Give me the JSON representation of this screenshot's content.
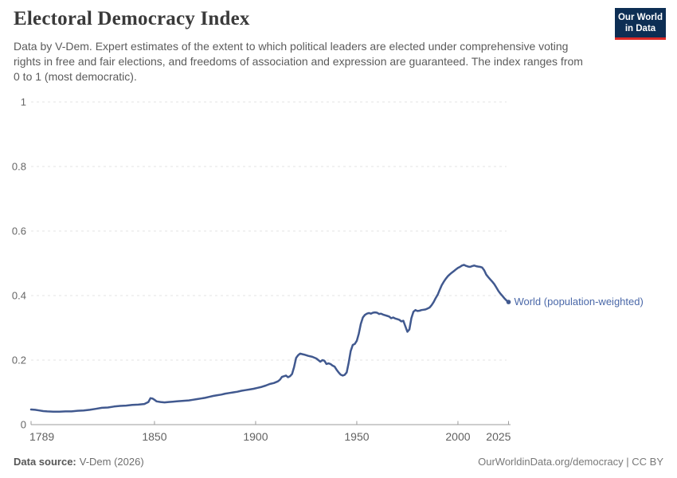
{
  "page": {
    "background": "#ffffff"
  },
  "header": {
    "title": "Electoral Democracy Index",
    "subtitle": "Data by V-Dem. Expert estimates of the extent to which political leaders are elected under comprehensive voting rights in free and fair elections, and freedoms of association and expression are guaranteed. The index ranges from 0 to 1 (most democratic)."
  },
  "logo": {
    "line1": "Our World",
    "line2": "in Data",
    "bg_color": "#0d2e54",
    "accent_color": "#dc2a27",
    "text_color": "#ffffff"
  },
  "chart_data": {
    "type": "line",
    "title": "Electoral Democracy Index",
    "xlabel": "",
    "ylabel": "",
    "x_domain": [
      1789,
      2026
    ],
    "y_domain": [
      0,
      1
    ],
    "x_ticks": [
      1789,
      1850,
      1900,
      1950,
      2000,
      2025
    ],
    "y_ticks": [
      0,
      0.2,
      0.4,
      0.6,
      0.8,
      1
    ],
    "grid": "horizontal-dashed",
    "grid_color": "#e3e3e3",
    "axis_color": "#9b9b9b",
    "legend_position": "label-at-line-end",
    "series": [
      {
        "name": "World (population-weighted)",
        "color": "#41598f",
        "label_color": "#4a68a8",
        "points": [
          [
            1789,
            0.047
          ],
          [
            1791,
            0.046
          ],
          [
            1793,
            0.044
          ],
          [
            1795,
            0.042
          ],
          [
            1797,
            0.041
          ],
          [
            1800,
            0.04
          ],
          [
            1803,
            0.04
          ],
          [
            1806,
            0.041
          ],
          [
            1809,
            0.041
          ],
          [
            1812,
            0.043
          ],
          [
            1815,
            0.044
          ],
          [
            1818,
            0.046
          ],
          [
            1821,
            0.049
          ],
          [
            1824,
            0.052
          ],
          [
            1827,
            0.053
          ],
          [
            1830,
            0.056
          ],
          [
            1833,
            0.058
          ],
          [
            1836,
            0.059
          ],
          [
            1839,
            0.061
          ],
          [
            1842,
            0.062
          ],
          [
            1845,
            0.064
          ],
          [
            1847,
            0.07
          ],
          [
            1848,
            0.082
          ],
          [
            1849,
            0.081
          ],
          [
            1850,
            0.077
          ],
          [
            1851,
            0.072
          ],
          [
            1853,
            0.07
          ],
          [
            1855,
            0.069
          ],
          [
            1857,
            0.07
          ],
          [
            1859,
            0.071
          ],
          [
            1861,
            0.072
          ],
          [
            1863,
            0.073
          ],
          [
            1865,
            0.074
          ],
          [
            1867,
            0.075
          ],
          [
            1869,
            0.077
          ],
          [
            1871,
            0.079
          ],
          [
            1873,
            0.081
          ],
          [
            1875,
            0.083
          ],
          [
            1877,
            0.086
          ],
          [
            1879,
            0.089
          ],
          [
            1881,
            0.091
          ],
          [
            1883,
            0.093
          ],
          [
            1885,
            0.096
          ],
          [
            1887,
            0.098
          ],
          [
            1889,
            0.1
          ],
          [
            1891,
            0.102
          ],
          [
            1893,
            0.105
          ],
          [
            1895,
            0.107
          ],
          [
            1897,
            0.109
          ],
          [
            1899,
            0.111
          ],
          [
            1901,
            0.114
          ],
          [
            1903,
            0.117
          ],
          [
            1905,
            0.121
          ],
          [
            1907,
            0.126
          ],
          [
            1909,
            0.129
          ],
          [
            1911,
            0.134
          ],
          [
            1912,
            0.139
          ],
          [
            1913,
            0.148
          ],
          [
            1915,
            0.152
          ],
          [
            1916,
            0.147
          ],
          [
            1917,
            0.15
          ],
          [
            1918,
            0.157
          ],
          [
            1919,
            0.178
          ],
          [
            1920,
            0.207
          ],
          [
            1921,
            0.215
          ],
          [
            1922,
            0.22
          ],
          [
            1924,
            0.217
          ],
          [
            1926,
            0.213
          ],
          [
            1928,
            0.21
          ],
          [
            1930,
            0.205
          ],
          [
            1931,
            0.2
          ],
          [
            1932,
            0.195
          ],
          [
            1933,
            0.2
          ],
          [
            1934,
            0.198
          ],
          [
            1935,
            0.188
          ],
          [
            1936,
            0.19
          ],
          [
            1937,
            0.188
          ],
          [
            1938,
            0.183
          ],
          [
            1939,
            0.18
          ],
          [
            1940,
            0.17
          ],
          [
            1941,
            0.162
          ],
          [
            1942,
            0.155
          ],
          [
            1943,
            0.152
          ],
          [
            1944,
            0.154
          ],
          [
            1945,
            0.162
          ],
          [
            1946,
            0.192
          ],
          [
            1947,
            0.228
          ],
          [
            1948,
            0.247
          ],
          [
            1949,
            0.25
          ],
          [
            1950,
            0.26
          ],
          [
            1951,
            0.282
          ],
          [
            1952,
            0.312
          ],
          [
            1953,
            0.332
          ],
          [
            1954,
            0.34
          ],
          [
            1955,
            0.344
          ],
          [
            1956,
            0.346
          ],
          [
            1957,
            0.344
          ],
          [
            1958,
            0.347
          ],
          [
            1959,
            0.348
          ],
          [
            1960,
            0.347
          ],
          [
            1961,
            0.343
          ],
          [
            1962,
            0.344
          ],
          [
            1963,
            0.341
          ],
          [
            1964,
            0.339
          ],
          [
            1965,
            0.337
          ],
          [
            1966,
            0.335
          ],
          [
            1967,
            0.33
          ],
          [
            1968,
            0.332
          ],
          [
            1969,
            0.329
          ],
          [
            1970,
            0.327
          ],
          [
            1971,
            0.325
          ],
          [
            1972,
            0.32
          ],
          [
            1973,
            0.322
          ],
          [
            1974,
            0.305
          ],
          [
            1975,
            0.288
          ],
          [
            1976,
            0.295
          ],
          [
            1977,
            0.33
          ],
          [
            1978,
            0.35
          ],
          [
            1979,
            0.355
          ],
          [
            1980,
            0.352
          ],
          [
            1981,
            0.353
          ],
          [
            1982,
            0.355
          ],
          [
            1983,
            0.356
          ],
          [
            1984,
            0.357
          ],
          [
            1985,
            0.36
          ],
          [
            1986,
            0.363
          ],
          [
            1987,
            0.37
          ],
          [
            1988,
            0.38
          ],
          [
            1989,
            0.392
          ],
          [
            1990,
            0.403
          ],
          [
            1991,
            0.418
          ],
          [
            1992,
            0.432
          ],
          [
            1993,
            0.443
          ],
          [
            1994,
            0.452
          ],
          [
            1995,
            0.46
          ],
          [
            1996,
            0.466
          ],
          [
            1997,
            0.471
          ],
          [
            1998,
            0.476
          ],
          [
            1999,
            0.481
          ],
          [
            2000,
            0.486
          ],
          [
            2001,
            0.489
          ],
          [
            2002,
            0.493
          ],
          [
            2003,
            0.495
          ],
          [
            2004,
            0.492
          ],
          [
            2005,
            0.49
          ],
          [
            2006,
            0.489
          ],
          [
            2007,
            0.491
          ],
          [
            2008,
            0.493
          ],
          [
            2009,
            0.491
          ],
          [
            2010,
            0.49
          ],
          [
            2011,
            0.489
          ],
          [
            2012,
            0.487
          ],
          [
            2013,
            0.478
          ],
          [
            2014,
            0.465
          ],
          [
            2015,
            0.457
          ],
          [
            2016,
            0.45
          ],
          [
            2017,
            0.443
          ],
          [
            2018,
            0.435
          ],
          [
            2019,
            0.425
          ],
          [
            2020,
            0.414
          ],
          [
            2021,
            0.406
          ],
          [
            2022,
            0.399
          ],
          [
            2023,
            0.391
          ],
          [
            2024,
            0.385
          ],
          [
            2025,
            0.38
          ]
        ]
      }
    ]
  },
  "footer": {
    "source_label": "Data source:",
    "source_value": "V-Dem (2026)",
    "credit": "OurWorldinData.org/democracy | CC BY"
  }
}
